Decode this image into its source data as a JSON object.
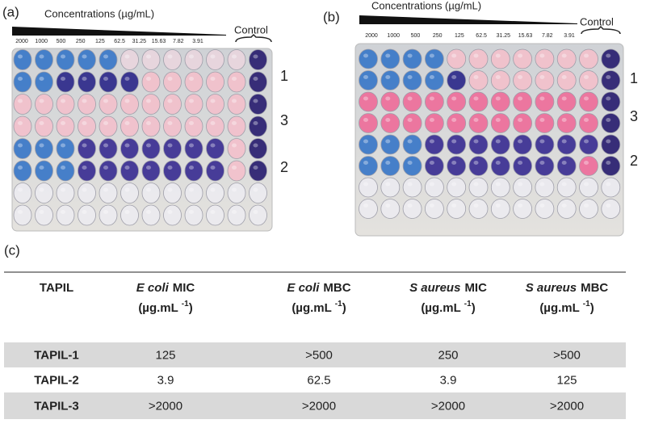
{
  "panels": [
    {
      "label": "(a)",
      "axis_title": "Concentrations (µg/mL)",
      "concentrations": [
        "2000",
        "1000",
        "500",
        "250",
        "125",
        "62.5",
        "31.25",
        "15.63",
        "7.82",
        "3.91"
      ],
      "control": "Control",
      "row_labels": [
        "1",
        "3",
        "2"
      ]
    },
    {
      "label": "(b)",
      "axis_title": "Concentrations (µg/mL)",
      "concentrations": [
        "2000",
        "1000",
        "500",
        "250",
        "125",
        "62.5",
        "31.25",
        "15.63",
        "7.82",
        "3.91"
      ],
      "control": "Control",
      "row_labels": [
        "1",
        "3",
        "2"
      ]
    }
  ],
  "table": {
    "label": "(c)",
    "header": [
      {
        "text": "TAPIL"
      },
      {
        "italic": "E coli",
        "text": "MIC",
        "unit": "(µg.mL",
        "sup": "-1",
        "close": ")"
      },
      {
        "italic": "E coli",
        "text": "MBC",
        "unit": "(µg.mL",
        "sup": "-1",
        "close": ")"
      },
      {
        "italic": "S aureus",
        "text": "MIC",
        "unit": "(µg.mL",
        "sup": "-1",
        "close": ")"
      },
      {
        "italic": "S aureus",
        "text": "MBC",
        "unit": "(µg.mL",
        "sup": "-1",
        "close": ")"
      }
    ],
    "rows": [
      [
        "TAPIL-1",
        "125",
        ">500",
        "250",
        ">500"
      ],
      [
        "TAPIL-2",
        "3.9",
        "62.5",
        "3.9",
        "125"
      ],
      [
        "TAPIL-3",
        ">2000",
        ">2000",
        ">2000",
        ">2000"
      ]
    ]
  }
}
